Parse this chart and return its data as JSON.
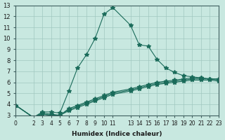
{
  "xlabel": "Humidex (Indice chaleur)",
  "ylabel": "",
  "bg_color": "#c8e8e0",
  "line_color": "#1a6b5a",
  "grid_color": "#a0c8c0",
  "xlim": [
    0,
    23
  ],
  "ylim": [
    3,
    13
  ],
  "xticks": [
    0,
    2,
    3,
    4,
    5,
    6,
    7,
    8,
    9,
    10,
    11,
    13,
    14,
    15,
    16,
    17,
    18,
    19,
    20,
    21,
    22,
    23
  ],
  "yticks": [
    3,
    4,
    5,
    6,
    7,
    8,
    9,
    10,
    11,
    12,
    13
  ],
  "series": [
    {
      "x": [
        0,
        2,
        3,
        4,
        5,
        6,
        7,
        8,
        9,
        10,
        11,
        13,
        14,
        15,
        16,
        17,
        18,
        19,
        20,
        21,
        22,
        23
      ],
      "y": [
        3.9,
        2.8,
        3.3,
        3.3,
        3.2,
        5.2,
        7.3,
        8.5,
        10.0,
        12.2,
        12.8,
        11.2,
        9.4,
        9.3,
        8.1,
        7.3,
        6.9,
        6.6,
        6.5,
        6.4,
        6.3,
        6.3
      ]
    },
    {
      "x": [
        0,
        2,
        3,
        4,
        5,
        6,
        7,
        8,
        9,
        10,
        11,
        13,
        14,
        15,
        16,
        17,
        18,
        19,
        20,
        21,
        22,
        23
      ],
      "y": [
        3.9,
        2.8,
        3.2,
        3.1,
        3.0,
        3.6,
        3.9,
        4.2,
        4.5,
        4.8,
        5.1,
        5.4,
        5.6,
        5.8,
        6.0,
        6.1,
        6.2,
        6.3,
        6.4,
        6.4,
        6.3,
        6.3
      ]
    },
    {
      "x": [
        0,
        2,
        3,
        4,
        5,
        6,
        7,
        8,
        9,
        10,
        11,
        13,
        14,
        15,
        16,
        17,
        18,
        19,
        20,
        21,
        22,
        23
      ],
      "y": [
        3.9,
        2.8,
        3.1,
        3.0,
        3.0,
        3.5,
        3.8,
        4.1,
        4.4,
        4.7,
        5.0,
        5.3,
        5.5,
        5.7,
        5.9,
        6.0,
        6.1,
        6.2,
        6.3,
        6.3,
        6.3,
        6.2
      ]
    },
    {
      "x": [
        0,
        2,
        3,
        4,
        5,
        6,
        7,
        8,
        9,
        10,
        11,
        13,
        14,
        15,
        16,
        17,
        18,
        19,
        20,
        21,
        22,
        23
      ],
      "y": [
        3.9,
        2.8,
        3.1,
        3.0,
        3.0,
        3.4,
        3.7,
        4.0,
        4.3,
        4.6,
        4.9,
        5.2,
        5.4,
        5.6,
        5.8,
        5.9,
        6.0,
        6.1,
        6.2,
        6.2,
        6.2,
        6.1
      ]
    }
  ]
}
